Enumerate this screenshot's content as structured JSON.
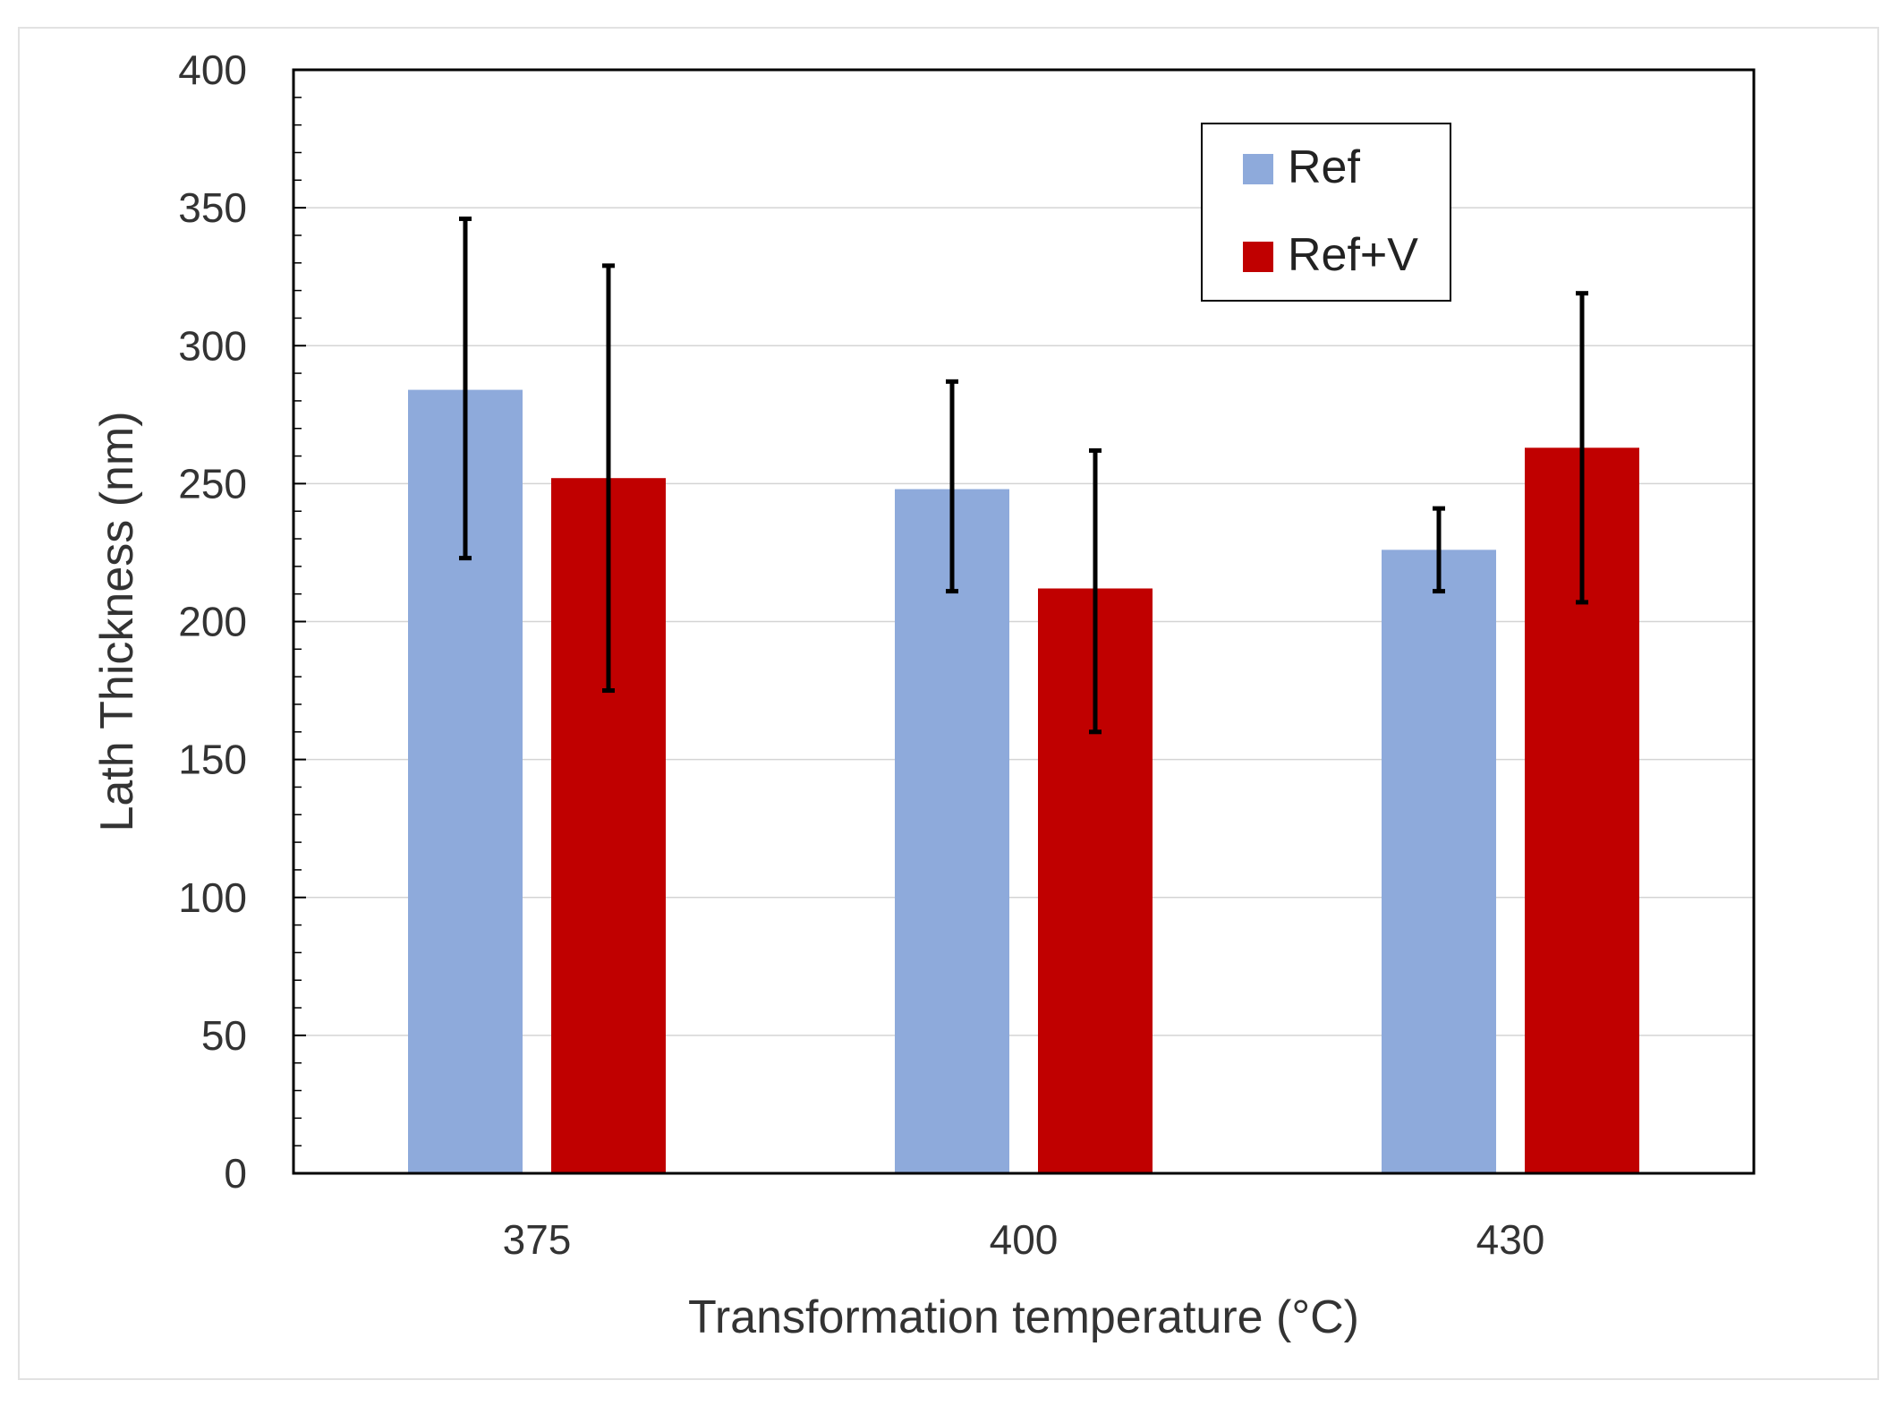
{
  "chart_data": {
    "type": "bar",
    "categories": [
      "375",
      "400",
      "430"
    ],
    "series": [
      {
        "name": "Ref",
        "color": "#8eaadb",
        "values": [
          284,
          248,
          226
        ],
        "error_low": [
          223,
          211,
          211
        ],
        "error_high": [
          346,
          287,
          241
        ]
      },
      {
        "name": "Ref+V",
        "color": "#c00000",
        "values": [
          252,
          212,
          263
        ],
        "error_low": [
          175,
          160,
          207
        ],
        "error_high": [
          329,
          262,
          319
        ]
      }
    ],
    "title": "",
    "xlabel": "Transformation temperature (°C)",
    "ylabel": "Lath Thickness (nm)",
    "ylim": [
      0,
      400
    ],
    "yticks": [
      "0",
      "50",
      "100",
      "150",
      "200",
      "250",
      "300",
      "350",
      "400"
    ],
    "grid": true,
    "legend_position": "top-right"
  }
}
